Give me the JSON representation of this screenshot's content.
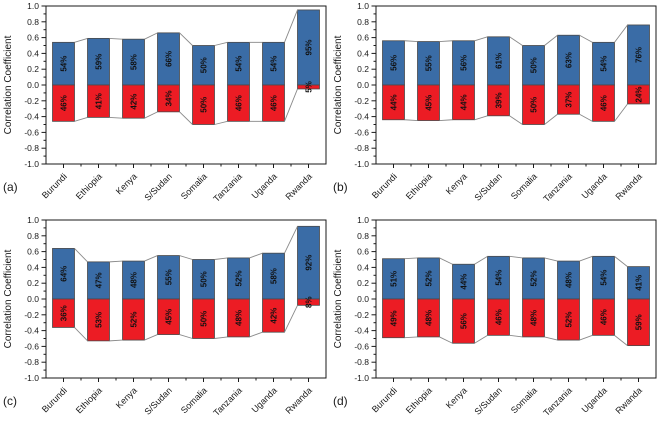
{
  "figure": {
    "title": "",
    "ylabel": "Correlation Coefficient",
    "unit": "%",
    "colors": {
      "positive_bar": "#3a6ca6",
      "negative_bar": "#ec1c24",
      "bar_outline": "#4a4a4a",
      "envelope_line": "#8a8a8a",
      "axis": "#1a1a1a",
      "label_text": "#111111"
    }
  },
  "chart_data": [
    {
      "type": "bar",
      "panel_label": "(a)",
      "title": "",
      "xlabel": "",
      "ylabel": "Correlation Coefficient",
      "ylim": [
        -1.0,
        1.0
      ],
      "ytick_step": 0.2,
      "grid": false,
      "legend": "none",
      "categories": [
        "Burundi",
        "Ethiopia",
        "Kenya",
        "S/Sudan",
        "Somalia",
        "Tanzania",
        "Uganda",
        "Rwanda"
      ],
      "series": [
        {
          "name": "positive_pct",
          "values": [
            54,
            59,
            58,
            66,
            50,
            54,
            54,
            95
          ]
        },
        {
          "name": "negative_pct",
          "values": [
            46,
            41,
            42,
            34,
            50,
            46,
            46,
            5
          ]
        }
      ]
    },
    {
      "type": "bar",
      "panel_label": "(b)",
      "title": "",
      "xlabel": "",
      "ylabel": "Correlation Coefficient",
      "ylim": [
        -1.0,
        1.0
      ],
      "ytick_step": 0.2,
      "grid": false,
      "legend": "none",
      "categories": [
        "Burundi",
        "Ethiopia",
        "Kenya",
        "S/Sudan",
        "Somalia",
        "Tanzania",
        "Uganda",
        "Rwanda"
      ],
      "series": [
        {
          "name": "positive_pct",
          "values": [
            56,
            55,
            56,
            61,
            50,
            63,
            54,
            76
          ]
        },
        {
          "name": "negative_pct",
          "values": [
            44,
            45,
            44,
            39,
            50,
            37,
            46,
            24
          ]
        }
      ]
    },
    {
      "type": "bar",
      "panel_label": "(c)",
      "title": "",
      "xlabel": "",
      "ylabel": "Correlation Coefficient",
      "ylim": [
        -1.0,
        1.0
      ],
      "ytick_step": 0.2,
      "grid": false,
      "legend": "none",
      "categories": [
        "Burundi",
        "Ethiopia",
        "Kenya",
        "S/Sudan",
        "Somalia",
        "Tanzania",
        "Uganda",
        "Rwanda"
      ],
      "series": [
        {
          "name": "positive_pct",
          "values": [
            64,
            47,
            48,
            55,
            50,
            52,
            58,
            92
          ]
        },
        {
          "name": "negative_pct",
          "values": [
            36,
            53,
            52,
            45,
            50,
            48,
            42,
            8
          ]
        }
      ]
    },
    {
      "type": "bar",
      "panel_label": "(d)",
      "title": "",
      "xlabel": "",
      "ylabel": "Correlation Coefficient",
      "ylim": [
        -1.0,
        1.0
      ],
      "ytick_step": 0.2,
      "grid": false,
      "legend": "none",
      "categories": [
        "Burundi",
        "Ethiopia",
        "Kenya",
        "S/Sudan",
        "Somalia",
        "Tanzania",
        "Uganda",
        "Rwanda"
      ],
      "series": [
        {
          "name": "positive_pct",
          "values": [
            51,
            52,
            44,
            54,
            52,
            48,
            54,
            41
          ]
        },
        {
          "name": "negative_pct",
          "values": [
            49,
            48,
            56,
            46,
            48,
            52,
            46,
            59
          ]
        }
      ]
    }
  ]
}
